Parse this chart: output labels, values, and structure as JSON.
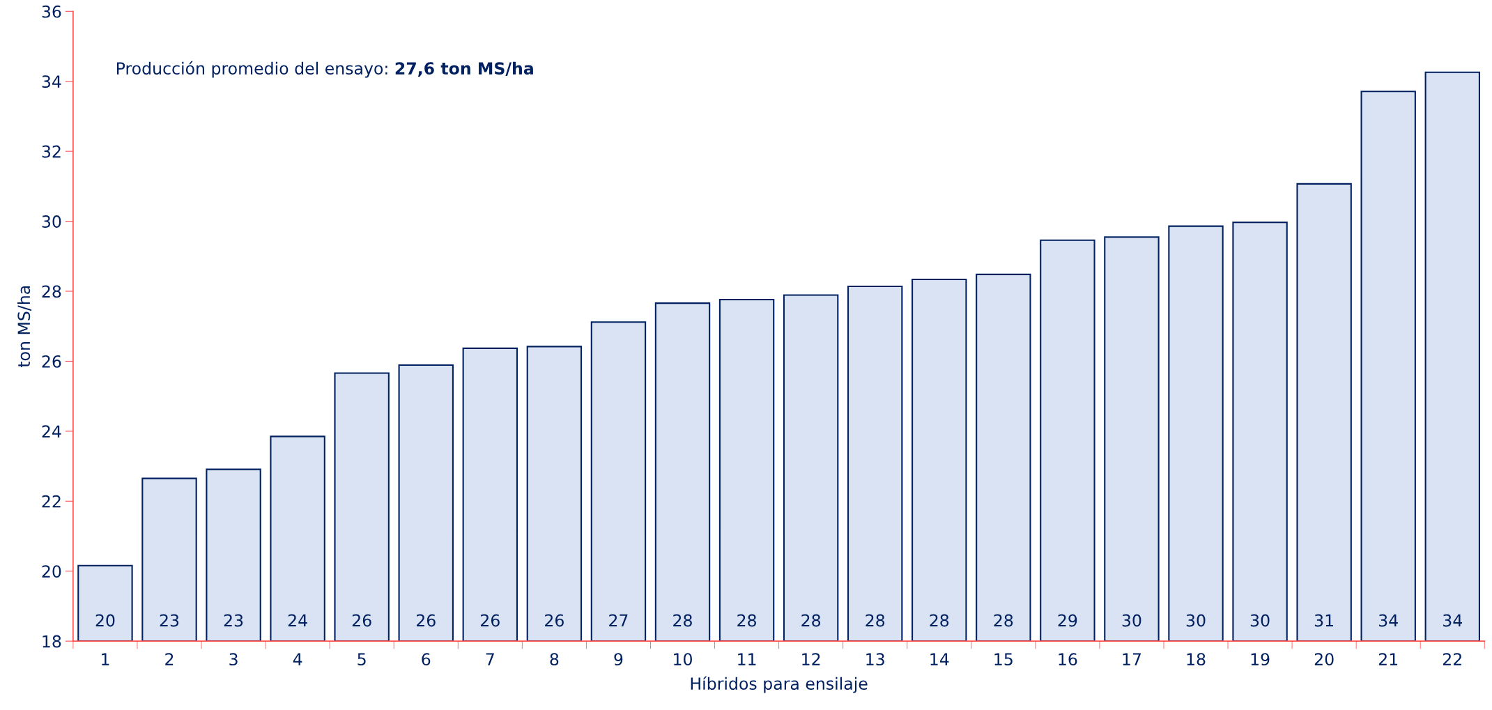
{
  "chart_data": {
    "type": "bar",
    "xlabel": "Híbridos para ensilaje",
    "ylabel": "ton MS/ha",
    "annotations": [
      "Producción promedio del ensayo: ",
      "27,6 ton MS/ha"
    ],
    "categories": [
      "1",
      "2",
      "3",
      "4",
      "5",
      "6",
      "7",
      "8",
      "9",
      "10",
      "11",
      "12",
      "13",
      "14",
      "15",
      "16",
      "17",
      "18",
      "19",
      "20",
      "21",
      "22"
    ],
    "values": [
      20.16,
      22.65,
      22.91,
      23.85,
      25.66,
      25.89,
      26.37,
      26.42,
      27.12,
      27.66,
      27.76,
      27.89,
      28.14,
      28.34,
      28.48,
      29.46,
      29.55,
      29.86,
      29.97,
      31.07,
      33.71,
      34.26
    ],
    "value_labels": [
      "20",
      "23",
      "23",
      "24",
      "26",
      "26",
      "26",
      "26",
      "27",
      "28",
      "28",
      "28",
      "28",
      "28",
      "28",
      "29",
      "30",
      "30",
      "30",
      "31",
      "34",
      "34"
    ],
    "color": "#dae3f3",
    "ylim": [
      18,
      36
    ],
    "yticks": [
      18,
      20,
      22,
      24,
      26,
      28,
      30,
      32,
      34,
      36
    ],
    "grid": false,
    "legend": false
  }
}
